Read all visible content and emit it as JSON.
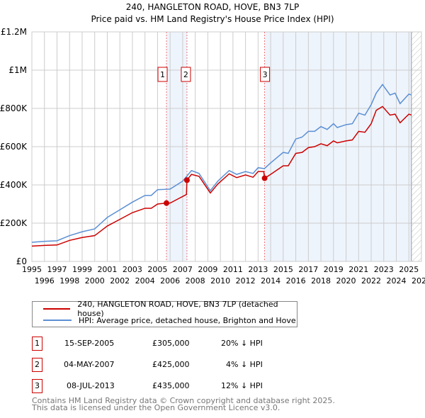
{
  "chart_data": {
    "type": "line",
    "title": "240, HANGLETON ROAD, HOVE, BN3 7LP",
    "subtitle": "Price paid vs. HM Land Registry's House Price Index (HPI)",
    "xlim": [
      1995,
      2026
    ],
    "ylim": [
      0,
      1200000
    ],
    "y_ticks": [
      {
        "v": 0,
        "label": "£0"
      },
      {
        "v": 200000,
        "label": "£200K"
      },
      {
        "v": 400000,
        "label": "£400K"
      },
      {
        "v": 600000,
        "label": "£600K"
      },
      {
        "v": 800000,
        "label": "£800K"
      },
      {
        "v": 1000000,
        "label": "£1M"
      },
      {
        "v": 1200000,
        "label": "£1.2M"
      }
    ],
    "x_ticks": [
      1995,
      1996,
      1997,
      1998,
      1999,
      2000,
      2001,
      2002,
      2003,
      2004,
      2005,
      2006,
      2007,
      2008,
      2009,
      2010,
      2011,
      2012,
      2013,
      2014,
      2015,
      2016,
      2017,
      2018,
      2019,
      2020,
      2021,
      2022,
      2023,
      2024,
      2025,
      2026
    ],
    "grid": true,
    "colors": {
      "price": "#cc0000",
      "hpi": "#5b8fd4",
      "shade": "#eef4fc"
    },
    "series": [
      {
        "name": "240, HANGLETON ROAD, HOVE, BN3 7LP (detached house)",
        "key": "price",
        "points": [
          [
            1995,
            80
          ],
          [
            1996,
            84
          ],
          [
            1997,
            86
          ],
          [
            1998,
            110
          ],
          [
            1999,
            125
          ],
          [
            2000,
            135
          ],
          [
            2000.5,
            160
          ],
          [
            2001,
            185
          ],
          [
            2002,
            220
          ],
          [
            2003,
            255
          ],
          [
            2004,
            278
          ],
          [
            2004.5,
            278
          ],
          [
            2005,
            300
          ],
          [
            2005.71,
            305
          ],
          [
            2006,
            305
          ],
          [
            2007.3,
            350
          ],
          [
            2007.34,
            425
          ],
          [
            2007.7,
            455
          ],
          [
            2008.3,
            445
          ],
          [
            2009.2,
            358
          ],
          [
            2009.8,
            405
          ],
          [
            2010.7,
            458
          ],
          [
            2011.3,
            438
          ],
          [
            2012,
            452
          ],
          [
            2012.6,
            440
          ],
          [
            2013,
            470
          ],
          [
            2013.45,
            470
          ],
          [
            2013.52,
            435
          ],
          [
            2014,
            455
          ],
          [
            2015,
            500
          ],
          [
            2015.4,
            500
          ],
          [
            2016,
            565
          ],
          [
            2016.5,
            570
          ],
          [
            2017,
            595
          ],
          [
            2017.5,
            600
          ],
          [
            2018,
            615
          ],
          [
            2018.5,
            605
          ],
          [
            2019,
            630
          ],
          [
            2019.3,
            620
          ],
          [
            2020,
            630
          ],
          [
            2020.5,
            635
          ],
          [
            2021,
            680
          ],
          [
            2021.5,
            675
          ],
          [
            2022,
            720
          ],
          [
            2022.4,
            790
          ],
          [
            2022.9,
            810
          ],
          [
            2023.5,
            765
          ],
          [
            2023.9,
            770
          ],
          [
            2024.3,
            725
          ],
          [
            2025,
            770
          ],
          [
            2025.2,
            765
          ]
        ]
      },
      {
        "name": "HPI: Average price, detached house, Brighton and Hove",
        "key": "hpi",
        "points": [
          [
            1995,
            100
          ],
          [
            1996,
            105
          ],
          [
            1997,
            108
          ],
          [
            1998,
            135
          ],
          [
            1999,
            155
          ],
          [
            2000,
            170
          ],
          [
            2000.5,
            200
          ],
          [
            2001,
            230
          ],
          [
            2002,
            270
          ],
          [
            2003,
            310
          ],
          [
            2004,
            345
          ],
          [
            2004.5,
            345
          ],
          [
            2005,
            375
          ],
          [
            2006,
            378
          ],
          [
            2007,
            420
          ],
          [
            2007.7,
            475
          ],
          [
            2008.3,
            460
          ],
          [
            2009.2,
            370
          ],
          [
            2009.8,
            420
          ],
          [
            2010.7,
            475
          ],
          [
            2011.3,
            455
          ],
          [
            2012,
            470
          ],
          [
            2012.6,
            460
          ],
          [
            2013,
            490
          ],
          [
            2013.5,
            485
          ],
          [
            2014,
            515
          ],
          [
            2015,
            570
          ],
          [
            2015.4,
            565
          ],
          [
            2016,
            640
          ],
          [
            2016.5,
            650
          ],
          [
            2017,
            680
          ],
          [
            2017.5,
            680
          ],
          [
            2018,
            705
          ],
          [
            2018.5,
            690
          ],
          [
            2019,
            720
          ],
          [
            2019.3,
            700
          ],
          [
            2020,
            715
          ],
          [
            2020.5,
            720
          ],
          [
            2021,
            775
          ],
          [
            2021.5,
            765
          ],
          [
            2022,
            820
          ],
          [
            2022.4,
            880
          ],
          [
            2022.9,
            925
          ],
          [
            2023.5,
            870
          ],
          [
            2023.9,
            880
          ],
          [
            2024.3,
            825
          ],
          [
            2025,
            875
          ],
          [
            2025.2,
            870
          ]
        ]
      }
    ],
    "sales": [
      {
        "n": "1",
        "x": 2005.71,
        "y": 305000
      },
      {
        "n": "2",
        "x": 2007.34,
        "y": 425000
      },
      {
        "n": "3",
        "x": 2013.52,
        "y": 435000
      }
    ]
  },
  "legend": [
    "240, HANGLETON ROAD, HOVE, BN3 7LP (detached house)",
    "HPI: Average price, detached house, Brighton and Hove"
  ],
  "table": [
    {
      "n": "1",
      "date": "15-SEP-2005",
      "price": "£305,000",
      "diff": "20% ↓ HPI"
    },
    {
      "n": "2",
      "date": "04-MAY-2007",
      "price": "£425,000",
      "diff": "4% ↓ HPI"
    },
    {
      "n": "3",
      "date": "08-JUL-2013",
      "price": "£435,000",
      "diff": "12% ↓ HPI"
    }
  ],
  "footer": [
    "Contains HM Land Registry data © Crown copyright and database right 2025.",
    "This data is licensed under the Open Government Licence v3.0."
  ]
}
